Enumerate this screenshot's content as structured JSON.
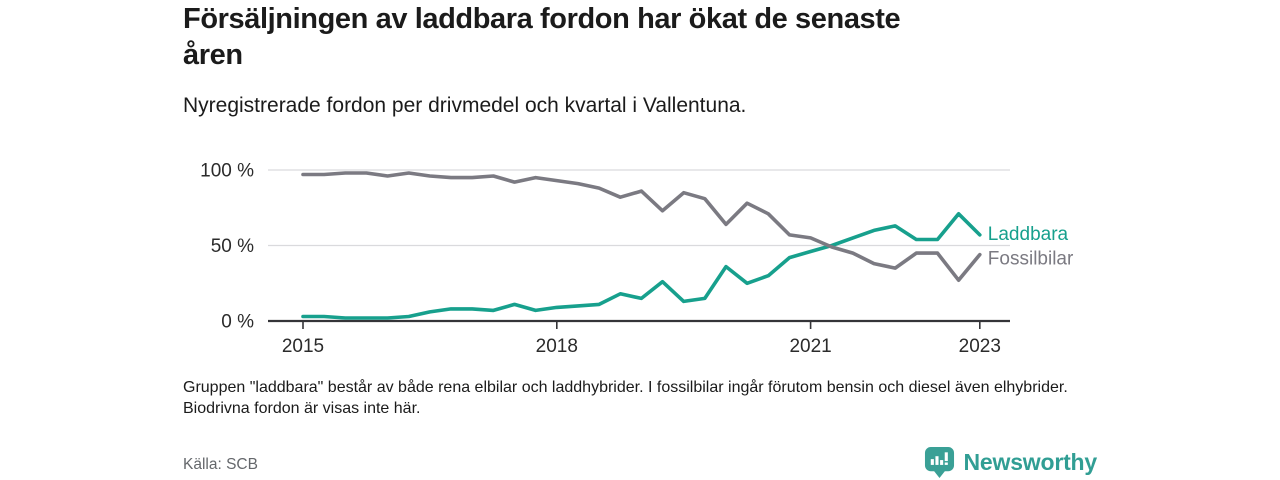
{
  "header": {
    "title_lines": [
      "Försäljningen av laddbara fordon har ökat de senaste",
      "åren"
    ],
    "subtitle": "Nyregistrerade fordon per drivmedel och kvartal i Vallentuna."
  },
  "chart_data": {
    "type": "line",
    "title": "Försäljningen av laddbara fordon har ökat de senaste åren",
    "subtitle": "Nyregistrerade fordon per drivmedel och kvartal i Vallentuna.",
    "x_unit": "quarter",
    "x_start_year": 2015,
    "x_step_years": 0.25,
    "ylim": [
      0,
      100
    ],
    "grid": "horizontal",
    "legend_position": "line-end",
    "y_ticks": [
      {
        "value": 100,
        "label": "100 %"
      },
      {
        "value": 50,
        "label": "50 %"
      },
      {
        "value": 0,
        "label": "0 %"
      }
    ],
    "x_ticks": [
      {
        "year": 2015,
        "label": "2015"
      },
      {
        "year": 2018,
        "label": "2018"
      },
      {
        "year": 2021,
        "label": "2021"
      },
      {
        "year": 2023,
        "label": "2023"
      }
    ],
    "series": [
      {
        "name": "Laddbara",
        "color": "#17a08d",
        "values": [
          3,
          3,
          2,
          2,
          2,
          3,
          6,
          8,
          8,
          7,
          11,
          7,
          9,
          10,
          11,
          18,
          15,
          26,
          13,
          15,
          36,
          25,
          30,
          42,
          46,
          50,
          55,
          60,
          63,
          54,
          54,
          71,
          57
        ]
      },
      {
        "name": "Fossilbilar",
        "color": "#7b7a82",
        "values": [
          97,
          97,
          98,
          98,
          96,
          98,
          96,
          95,
          95,
          96,
          92,
          95,
          93,
          91,
          88,
          82,
          86,
          73,
          85,
          81,
          64,
          78,
          71,
          57,
          55,
          49,
          45,
          38,
          35,
          45,
          45,
          27,
          44
        ]
      }
    ],
    "colors": {
      "grid": "#dadadd",
      "axis": "#343438",
      "tick_text": "#2b2b2b"
    }
  },
  "footnote": {
    "text": "Gruppen \"laddbara\" består av både rena elbilar och laddhybrider. I fossilbilar ingår förutom bensin och diesel även elhybrider. Biodrivna fordon är visas inte här."
  },
  "footer": {
    "source": "Källa: SCB",
    "brand": "Newsworthy"
  }
}
